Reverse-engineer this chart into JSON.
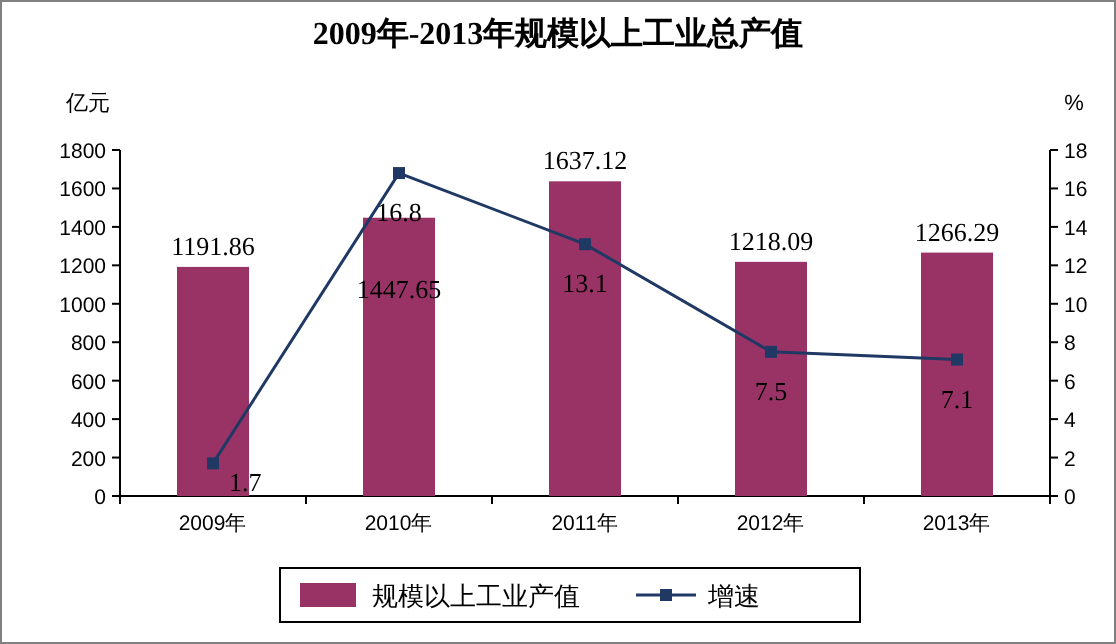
{
  "chart_data": {
    "type": "bar",
    "title": "2009年-2013年规模以上工业总产值",
    "ylabel": "亿元",
    "y2label": "%",
    "categories": [
      "2009年",
      "2010年",
      "2011年",
      "2012年",
      "2013年"
    ],
    "series": [
      {
        "name": "规模以上工业产值",
        "color": "#993366",
        "values": [
          1191.86,
          1447.65,
          1637.12,
          1218.09,
          1266.29
        ]
      },
      {
        "name": "增速",
        "type": "line",
        "axis": "y2",
        "color": "#1f3864",
        "values": [
          1.7,
          16.8,
          13.1,
          7.5,
          7.1
        ]
      }
    ],
    "ylim": [
      0,
      1800
    ],
    "yticks": [
      0,
      200,
      400,
      600,
      800,
      1000,
      1200,
      1400,
      1600,
      1800
    ],
    "y2lim": [
      0,
      18
    ],
    "y2ticks": [
      0,
      2,
      4,
      6,
      8,
      10,
      12,
      14,
      16,
      18
    ],
    "marker": "square",
    "line_style": "solid",
    "data_labels": true,
    "legend": "bottom"
  }
}
